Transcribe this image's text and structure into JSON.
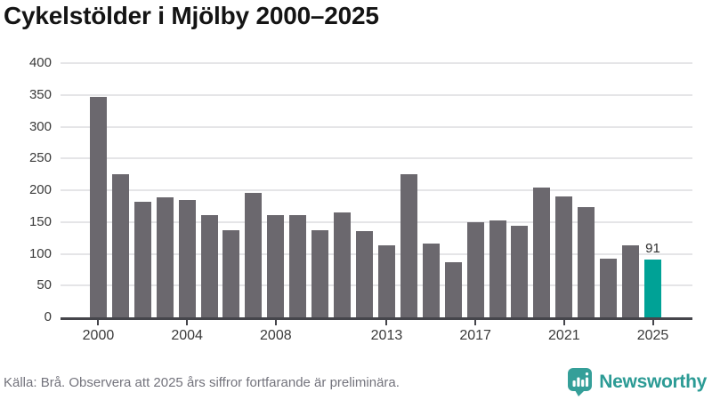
{
  "title": "Cykelstölder i Mjölby 2000–2025",
  "source_note": "Källa: Brå. Observera att 2025 års siffror fortfarande är preliminära.",
  "brand": {
    "name": "Newsworthy",
    "color": "#2c9b95"
  },
  "colors": {
    "bar": "#6b686e",
    "highlight": "#00a296",
    "grid": "#e5e5e7",
    "axis": "#45454b",
    "tick_text": "#3a3a3a",
    "muted_text": "#73737c",
    "title_text": "#141414"
  },
  "chart_data": {
    "type": "bar",
    "title": "Cykelstölder i Mjölby 2000–2025",
    "xlabel": "",
    "ylabel": "",
    "ylim": [
      0,
      400
    ],
    "yticks": [
      0,
      50,
      100,
      150,
      200,
      250,
      300,
      350,
      400
    ],
    "xticks": [
      2000,
      2004,
      2008,
      2013,
      2017,
      2021,
      2025
    ],
    "grid": true,
    "legend": false,
    "x": [
      2000,
      2001,
      2002,
      2003,
      2004,
      2005,
      2006,
      2007,
      2008,
      2009,
      2010,
      2011,
      2012,
      2013,
      2014,
      2015,
      2016,
      2017,
      2018,
      2019,
      2020,
      2021,
      2022,
      2023,
      2024,
      2025
    ],
    "values": [
      347,
      225,
      182,
      189,
      185,
      161,
      137,
      196,
      161,
      161,
      137,
      165,
      136,
      113,
      225,
      116,
      87,
      150,
      152,
      144,
      204,
      190,
      173,
      93,
      113,
      91
    ],
    "highlight_index": 25,
    "highlight_label": "91"
  }
}
